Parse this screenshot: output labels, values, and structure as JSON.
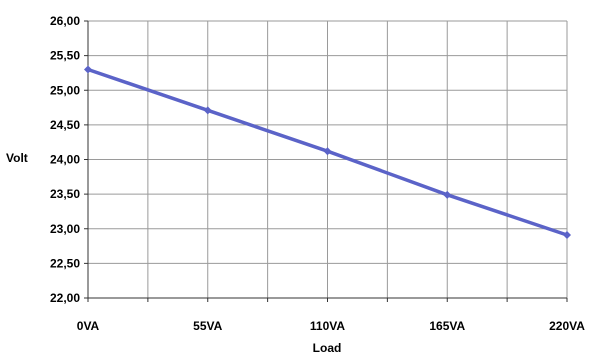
{
  "chart_data": {
    "type": "line",
    "categories": [
      "0VA",
      "55VA",
      "110VA",
      "165VA",
      "220VA"
    ],
    "series": [
      {
        "values": [
          25.3,
          24.71,
          24.12,
          23.49,
          22.91
        ]
      }
    ],
    "xlabel": "Load",
    "ylabel": "Volt",
    "ylim": [
      22.0,
      26.0
    ],
    "yticks": [
      "22,00",
      "22,50",
      "23,00",
      "23,50",
      "24,00",
      "24,50",
      "25,00",
      "25,50",
      "26,00"
    ],
    "grid": true,
    "legend": "none",
    "colors": {
      "line": "#5b63c8",
      "grid": "#9a9a9a",
      "axis": "#333333"
    }
  }
}
